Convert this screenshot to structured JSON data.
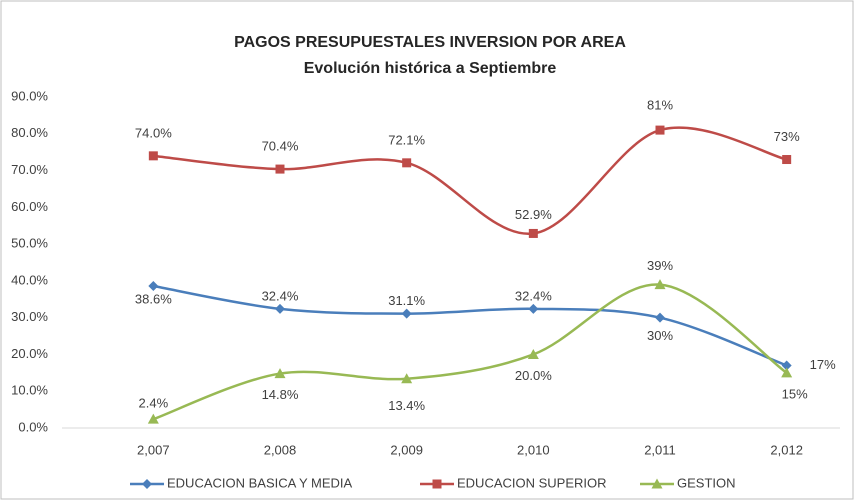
{
  "chart_data": {
    "type": "line",
    "title": "PAGOS PRESUPUESTALES INVERSION POR AREA",
    "subtitle": "Evolución histórica  a Septiembre",
    "categories": [
      "2,007",
      "2,008",
      "2,009",
      "2,010",
      "2,011",
      "2,012"
    ],
    "series": [
      {
        "name": "EDUCACION BASICA Y MEDIA",
        "color": "#4a7ebb",
        "marker": "diamond",
        "values": [
          38.6,
          32.4,
          31.1,
          32.4,
          30,
          17
        ],
        "value_labels": [
          "38.6%",
          "32.4%",
          "31.1%",
          "32.4%",
          "30%",
          "17%"
        ]
      },
      {
        "name": "EDUCACION SUPERIOR",
        "color": "#be4b48",
        "marker": "square",
        "values": [
          74.0,
          70.4,
          72.1,
          52.9,
          81,
          73
        ],
        "value_labels": [
          "74.0%",
          "70.4%",
          "72.1%",
          "52.9%",
          "81%",
          "73%"
        ]
      },
      {
        "name": "GESTION",
        "color": "#98b954",
        "marker": "triangle",
        "values": [
          2.4,
          14.8,
          13.4,
          20.0,
          39,
          15
        ],
        "value_labels": [
          "2.4%",
          "14.8%",
          "13.4%",
          "20.0%",
          "39%",
          "15%"
        ]
      }
    ],
    "ylim": [
      0,
      90
    ],
    "yticks": [
      {
        "value": 0,
        "label": "0.0%"
      },
      {
        "value": 10,
        "label": "10.0%"
      },
      {
        "value": 20,
        "label": "20.0%"
      },
      {
        "value": 30,
        "label": "30.0%"
      },
      {
        "value": 40,
        "label": "40.0%"
      },
      {
        "value": 50,
        "label": "50.0%"
      },
      {
        "value": 60,
        "label": "60.0%"
      },
      {
        "value": 70,
        "label": "70.0%"
      },
      {
        "value": 80,
        "label": "80.0%"
      },
      {
        "value": 90,
        "label": "90.0%"
      }
    ],
    "grid": false,
    "smooth": true,
    "legend": "bottom"
  }
}
